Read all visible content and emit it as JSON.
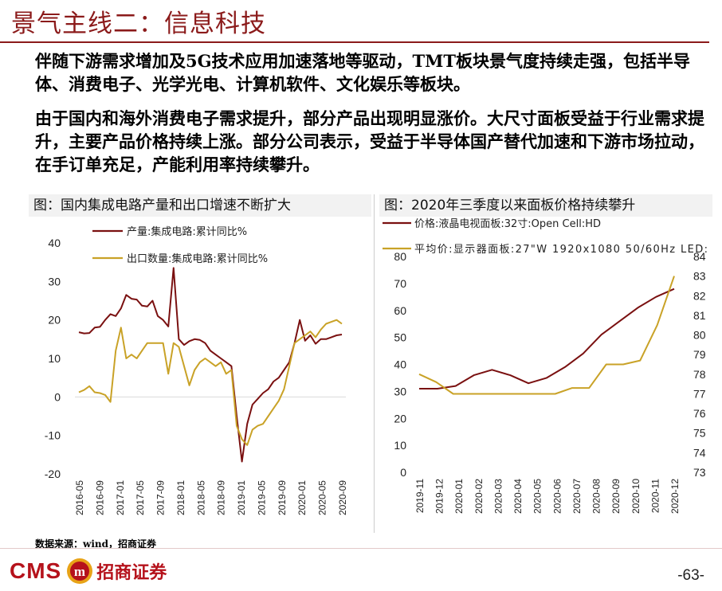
{
  "header": {
    "title": "景气主线二：信息科技"
  },
  "body": {
    "paragraph_1": "伴随下游需求增加及5G技术应用加速落地等驱动，TMT板块景气度持续走强，包括半导体、消费电子、光学光电、计算机软件、文化娱乐等板块。",
    "paragraph_2": "由于国内和海外消费电子需求提升，部分产品出现明显涨价。大尺寸面板受益于行业需求提升，主要产品价格持续上涨。部分公司表示，受益于半导体国产替代加速和下游市场拉动，在手订单充足，产能利用率持续攀升。"
  },
  "colors": {
    "dark_red": "#7a1010",
    "gold": "#c9a227",
    "brand_red": "#b5121b"
  },
  "chart_data": [
    {
      "type": "line",
      "title": "图：国内集成电路产量和出口增速不断扩大",
      "ylim": [
        -20,
        40
      ],
      "yticks": [
        "40",
        "30",
        "20",
        "10",
        "0",
        "-10",
        "-20"
      ],
      "xtick_labels": [
        "2016-05",
        "2016-09",
        "2017-01",
        "2017-05",
        "2017-09",
        "2018-01",
        "2018-05",
        "2018-09",
        "2019-01",
        "2019-05",
        "2019-09",
        "2020-01",
        "2020-05",
        "2020-09"
      ],
      "series": [
        {
          "name": "产量:集成电路:累计同比%",
          "color": "#7a1010",
          "values": [
            16.8,
            16.5,
            16.6,
            18,
            18.2,
            20,
            21.5,
            21,
            23,
            26.5,
            25.5,
            25.3,
            23.7,
            23.5,
            25,
            21,
            20,
            18.3,
            33.5,
            15,
            13.5,
            14.5,
            15,
            14.8,
            14,
            12,
            11,
            10,
            9,
            8,
            -5,
            -16.8,
            -7,
            -2,
            -0.5,
            1,
            2,
            4,
            5,
            7,
            9,
            14,
            20,
            14.6,
            16,
            13.8,
            15,
            15,
            15.5,
            16,
            16.2
          ]
        },
        {
          "name": "出口数量:集成电路:累计同比%",
          "color": "#c9a227",
          "values": [
            1.2,
            1.8,
            2.8,
            1.2,
            1,
            0.5,
            -1.3,
            12,
            18,
            10,
            11,
            10,
            12,
            14,
            14,
            14,
            14,
            6,
            14,
            13,
            8,
            3,
            7,
            9,
            10,
            9,
            8,
            9,
            6,
            7,
            -7.5,
            -11,
            -12.5,
            -8.5,
            -7.5,
            -7,
            -5,
            -3,
            -1,
            2,
            8,
            14,
            15,
            16,
            17,
            15.5,
            17.5,
            19,
            19.5,
            20,
            19
          ]
        }
      ]
    },
    {
      "type": "line",
      "title": "图：2020年三季度以来面板价格持续攀升",
      "ylim_left": [
        0,
        80
      ],
      "ylim_right": [
        73,
        84
      ],
      "yticks_left": [
        "80",
        "70",
        "60",
        "50",
        "40",
        "30",
        "20",
        "10",
        "0"
      ],
      "yticks_right": [
        "84",
        "83",
        "82",
        "81",
        "80",
        "79",
        "78",
        "77",
        "76",
        "75",
        "74",
        "73"
      ],
      "xtick_labels": [
        "2019-11",
        "2019-12",
        "2020-01",
        "2020-02",
        "2020-03",
        "2020-04",
        "2020-05",
        "2020-06",
        "2020-07",
        "2020-08",
        "2020-09",
        "2020-10",
        "2020-11",
        "2020-12"
      ],
      "series": [
        {
          "name": "价格:液晶电视面板:32寸:Open Cell:HD",
          "axis": "left",
          "color": "#7a1010",
          "values": [
            31,
            31,
            32,
            36,
            38,
            36,
            33,
            35,
            39,
            44,
            51,
            56,
            61,
            65,
            68
          ]
        },
        {
          "name": "平均价:显示器面板:27\"W 1920x1080 50/60Hz LED:",
          "axis": "right",
          "color": "#c9a227",
          "values": [
            78,
            77.6,
            77,
            77,
            77,
            77,
            77,
            77,
            77,
            77.3,
            77.3,
            78.5,
            78.5,
            78.7,
            80.5,
            83
          ]
        }
      ]
    }
  ],
  "source": "数据来源：wind，招商证券",
  "footer": {
    "logo_text": "CMS",
    "logo_mark": "m",
    "company": "招商证券",
    "page": "-63-"
  }
}
